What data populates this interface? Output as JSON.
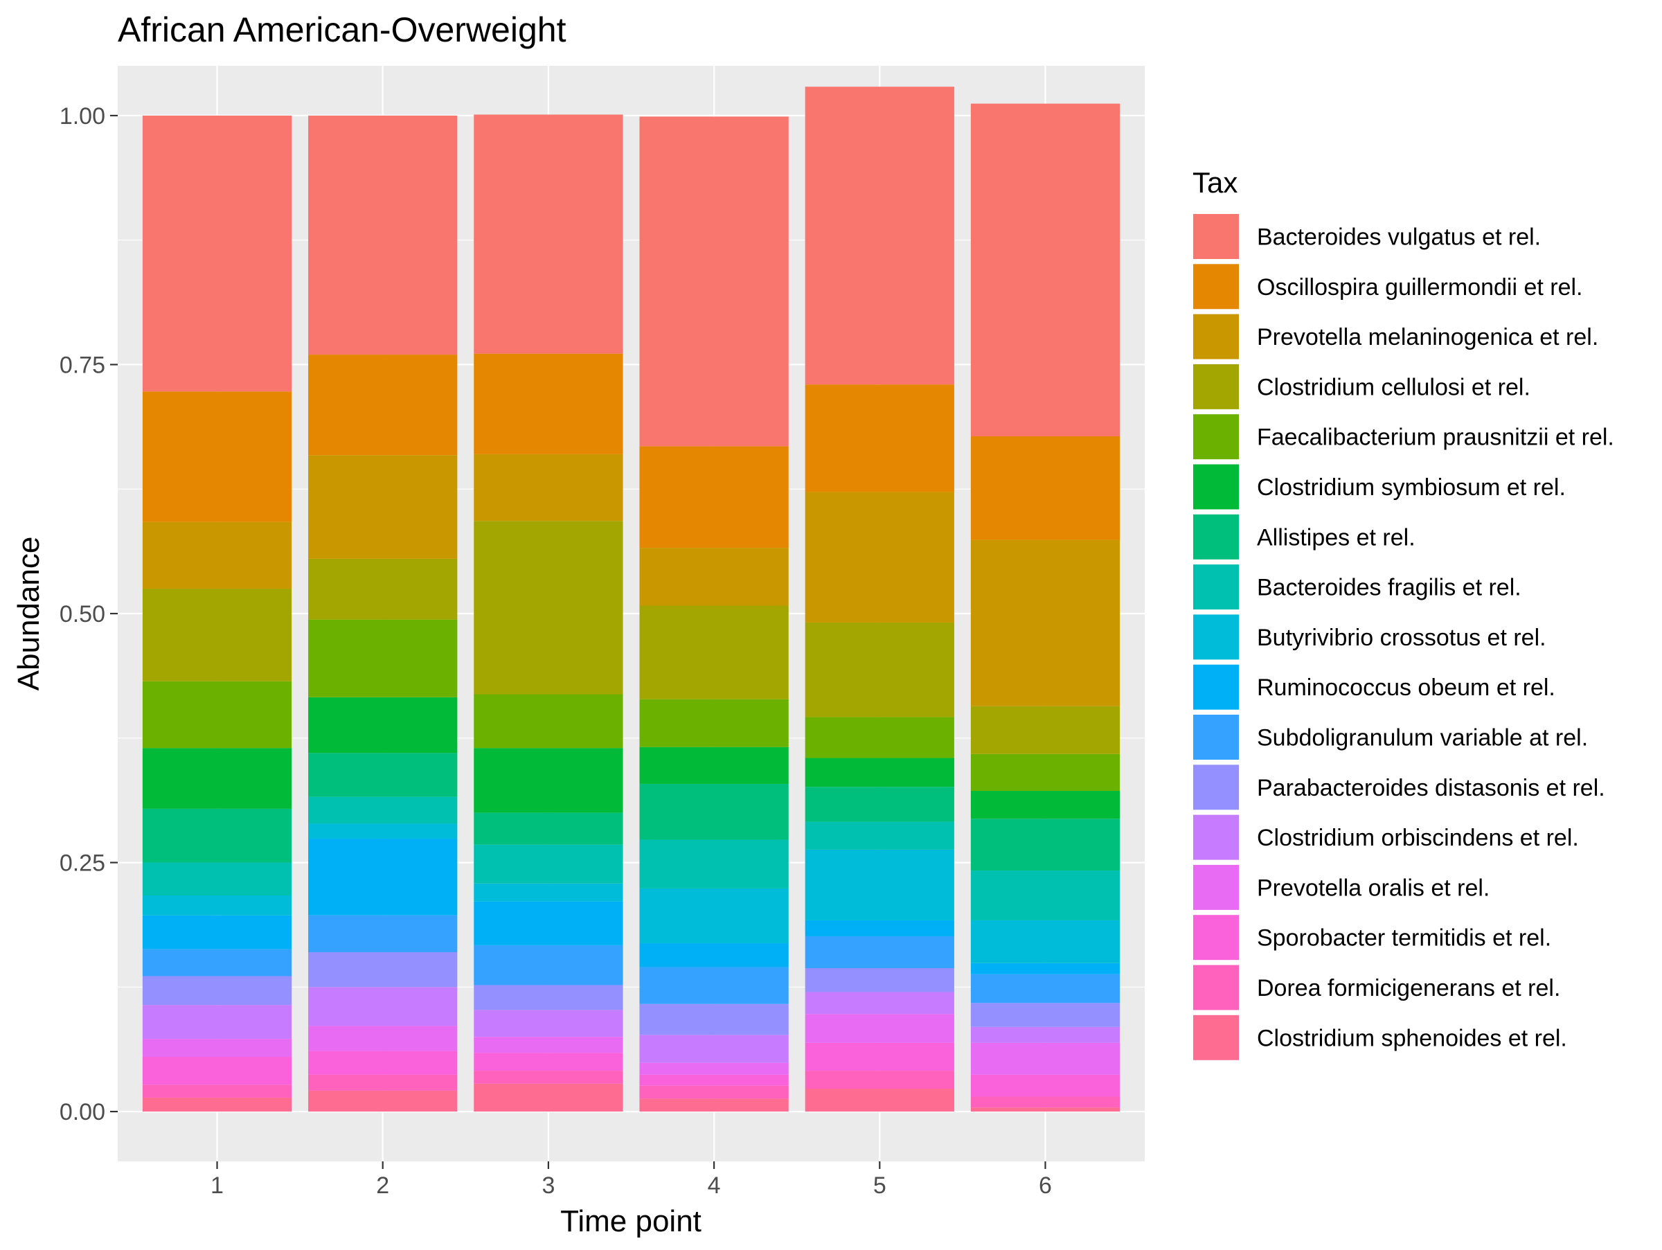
{
  "chart_data": {
    "type": "bar",
    "stacked": true,
    "title": "African American-Overweight",
    "xlabel": "Time point",
    "ylabel": "Abundance",
    "categories": [
      "1",
      "2",
      "3",
      "4",
      "5",
      "6"
    ],
    "ylim": [
      -0.05,
      1.05
    ],
    "yticks": [
      0,
      0.25,
      0.5,
      0.75,
      1
    ],
    "ytick_labels": [
      "0.00",
      "0.25",
      "0.50",
      "0.75",
      "1.00"
    ],
    "legend_title": "Tax",
    "legend_position": "right",
    "stack_order": "first series on top",
    "series": [
      {
        "name": "Bacteroides vulgatus et rel.",
        "color": "#F8766D",
        "values": [
          0.277,
          0.24,
          0.24,
          0.331,
          0.299,
          0.334
        ]
      },
      {
        "name": "Oscillospira guillermondii et rel.",
        "color": "#E58700",
        "values": [
          0.131,
          0.101,
          0.101,
          0.102,
          0.108,
          0.104
        ]
      },
      {
        "name": "Prevotella melaninogenica et rel.",
        "color": "#C99800",
        "values": [
          0.067,
          0.104,
          0.067,
          0.058,
          0.131,
          0.167
        ]
      },
      {
        "name": "Clostridium cellulosi et rel.",
        "color": "#A3A500",
        "values": [
          0.093,
          0.061,
          0.174,
          0.094,
          0.095,
          0.048
        ]
      },
      {
        "name": "Faecalibacterium prausnitzii et rel.",
        "color": "#6BB100",
        "values": [
          0.067,
          0.078,
          0.054,
          0.048,
          0.041,
          0.037
        ]
      },
      {
        "name": "Clostridium symbiosum et rel.",
        "color": "#00BA38",
        "values": [
          0.061,
          0.056,
          0.065,
          0.037,
          0.029,
          0.028
        ]
      },
      {
        "name": "Allistipes et rel.",
        "color": "#00BF7D",
        "values": [
          0.054,
          0.044,
          0.032,
          0.056,
          0.035,
          0.052
        ]
      },
      {
        "name": "Bacteroides fragilis et rel.",
        "color": "#00C0AF",
        "values": [
          0.033,
          0.027,
          0.039,
          0.049,
          0.028,
          0.05
        ]
      },
      {
        "name": "Butyrivibrio crossotus et rel.",
        "color": "#00BCD8",
        "values": [
          0.02,
          0.015,
          0.018,
          0.055,
          0.071,
          0.043
        ]
      },
      {
        "name": "Ruminococcus obeum et rel.",
        "color": "#00B0F6",
        "values": [
          0.034,
          0.077,
          0.044,
          0.024,
          0.016,
          0.011
        ]
      },
      {
        "name": "Subdoligranulum variable at rel.",
        "color": "#35A2FF",
        "values": [
          0.027,
          0.037,
          0.04,
          0.037,
          0.032,
          0.029
        ]
      },
      {
        "name": "Parabacteroides distasonis et rel.",
        "color": "#9590FF",
        "values": [
          0.029,
          0.035,
          0.025,
          0.031,
          0.024,
          0.024
        ]
      },
      {
        "name": "Clostridium orbiscindens et rel.",
        "color": "#C77CFF",
        "values": [
          0.034,
          0.039,
          0.027,
          0.028,
          0.022,
          0.016
        ]
      },
      {
        "name": "Prevotella oralis et rel.",
        "color": "#E76BF3",
        "values": [
          0.018,
          0.025,
          0.016,
          0.012,
          0.029,
          0.032
        ]
      },
      {
        "name": "Sporobacter termitidis et rel.",
        "color": "#FA62DB",
        "values": [
          0.028,
          0.024,
          0.018,
          0.011,
          0.028,
          0.022
        ]
      },
      {
        "name": "Dorea formicigenerans et rel.",
        "color": "#FF62BC",
        "values": [
          0.013,
          0.016,
          0.013,
          0.013,
          0.018,
          0.011
        ]
      },
      {
        "name": "Clostridium sphenoides et rel.",
        "color": "#FF6C91",
        "values": [
          0.014,
          0.021,
          0.028,
          0.013,
          0.023,
          0.004
        ]
      }
    ]
  }
}
